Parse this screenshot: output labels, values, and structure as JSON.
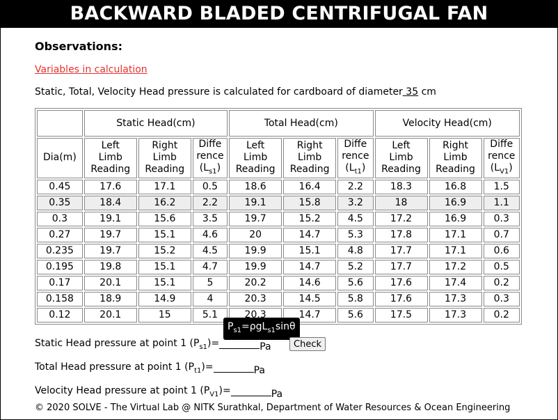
{
  "title": "BACKWARD BLADED CENTRIFUGAL FAN",
  "observations_heading": "Observations:",
  "variables_link": "Variables in calculation",
  "diameter_text": "Static, Total, Velocity Head pressure is calculated for cardboard of diameter",
  "diameter_value": "35",
  "diameter_unit": "cm",
  "table": {
    "group_headers": [
      "Static Head(cm)",
      "Total Head(cm)",
      "Velocity Head(cm)"
    ],
    "dia_header": "Dia(m)",
    "sub_headers": {
      "left": [
        "Left",
        "Limb",
        "Reading"
      ],
      "right": [
        "Right",
        "Limb",
        "Reading"
      ],
      "diff": [
        "Diffe",
        "rence"
      ],
      "diff_static": [
        "(L",
        "s1",
        ")"
      ],
      "diff_total": [
        "(L",
        "t1",
        ")"
      ],
      "diff_velocity": [
        "(L",
        "V1",
        ")"
      ]
    },
    "rows": [
      [
        "0.45",
        "17.6",
        "17.1",
        "0.5",
        "18.6",
        "16.4",
        "2.2",
        "18.3",
        "16.8",
        "1.5"
      ],
      [
        "0.35",
        "18.4",
        "16.2",
        "2.2",
        "19.1",
        "15.8",
        "3.2",
        "18",
        "16.9",
        "1.1"
      ],
      [
        "0.3",
        "19.1",
        "15.6",
        "3.5",
        "19.7",
        "15.2",
        "4.5",
        "17.2",
        "16.9",
        "0.3"
      ],
      [
        "0.27",
        "19.7",
        "15.1",
        "4.6",
        "20",
        "14.7",
        "5.3",
        "17.8",
        "17.1",
        "0.7"
      ],
      [
        "0.235",
        "19.7",
        "15.2",
        "4.5",
        "19.9",
        "15.1",
        "4.8",
        "17.7",
        "17.1",
        "0.6"
      ],
      [
        "0.195",
        "19.8",
        "15.1",
        "4.7",
        "19.9",
        "14.7",
        "5.2",
        "17.7",
        "17.2",
        "0.5"
      ],
      [
        "0.17",
        "20.1",
        "15.1",
        "5",
        "20.2",
        "14.6",
        "5.6",
        "17.6",
        "17.4",
        "0.2"
      ],
      [
        "0.158",
        "18.9",
        "14.9",
        "4",
        "20.3",
        "14.5",
        "5.8",
        "17.6",
        "17.3",
        "0.3"
      ],
      [
        "0.12",
        "20.1",
        "15",
        "5.1",
        "20.3",
        "14.7",
        "5.6",
        "17.5",
        "17.3",
        "0.2"
      ]
    ]
  },
  "tooltip": {
    "p": "P",
    "p_sub": "s1",
    "mid": "=ρgL",
    "l_sub": "s1",
    "tail": "sinθ"
  },
  "calc": {
    "static": {
      "label": "Static Head pressure at point 1 (P",
      "sub": "s1",
      "close": ")=",
      "unit": "Pa"
    },
    "total": {
      "label": "Total Head pressure at point 1 (P",
      "sub": "t1",
      "close": ")=",
      "unit": "Pa"
    },
    "velocity": {
      "label": "Velocity Head pressure at point 1 (P",
      "sub": "V1",
      "close": ")=",
      "unit": "Pa"
    }
  },
  "check_button": "Check",
  "footer": "© 2020 SOLVE - The Virtual Lab @ NITK Surathkal, Department of Water Resources & Ocean Engineering"
}
